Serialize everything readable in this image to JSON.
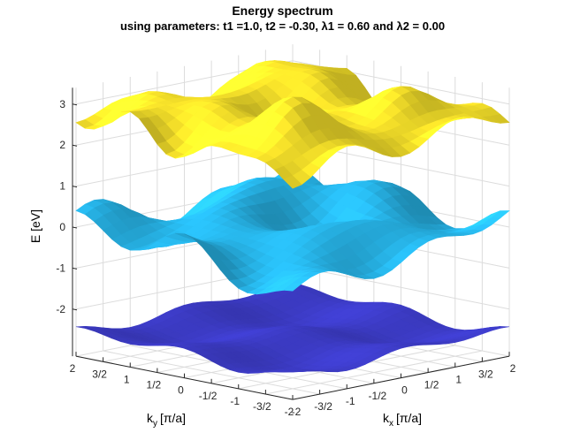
{
  "figure": {
    "title": "Energy spectrum",
    "subtitle": "using parameters: t1 =1.0, t2 = -0.30, λ1 = 0.60 and λ2 = 0.00"
  },
  "chart_data": {
    "type": "surface",
    "title": "Energy spectrum",
    "subtitle": "using parameters: t1 =1.0, t2 = -0.30, λ1 = 0.60 and λ2 = 0.00",
    "zlabel": "E [eV]",
    "xlabel_main": "k",
    "xlabel_sub": "x",
    "xlabel_unit": "[π/a]",
    "ylabel_main": "k",
    "ylabel_sub": "y",
    "ylabel_unit": "[π/a]",
    "kx_ticks": [
      "-2",
      "-3/2",
      "-1",
      "-1/2",
      "0",
      "1/2",
      "1",
      "3/2",
      "2"
    ],
    "ky_ticks": [
      "2",
      "3/2",
      "1",
      "1/2",
      "0",
      "-1/2",
      "-1",
      "-3/2",
      "-2"
    ],
    "z_ticks": [
      "3",
      "2",
      "1",
      "0",
      "-1",
      "-2"
    ],
    "z_tick_values": [
      3,
      2,
      1,
      0,
      -1,
      -2
    ],
    "kx_range": [
      -2,
      2
    ],
    "ky_range": [
      -2,
      2
    ],
    "zlim": [
      -3,
      3.4
    ],
    "grid": true,
    "series": [
      {
        "band": "upper",
        "approx_range": [
          1.8,
          3.4
        ],
        "color": "#f7e22a"
      },
      {
        "band": "middle",
        "approx_range": [
          -1.6,
          1.1
        ],
        "color": "#27b3e6"
      },
      {
        "band": "lower",
        "approx_range": [
          -2.9,
          -1.9
        ],
        "color": "#3c3bc4"
      }
    ]
  }
}
